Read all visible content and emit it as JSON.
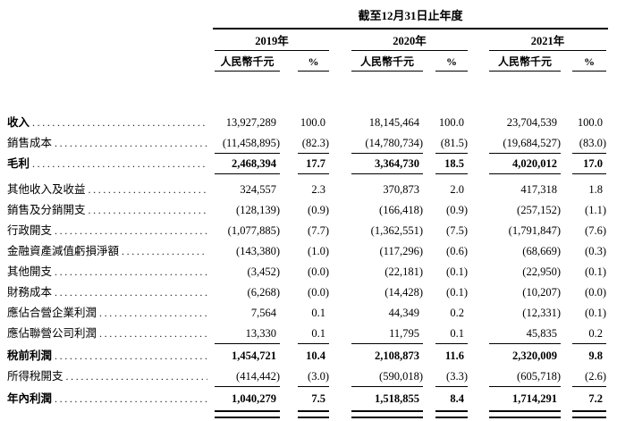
{
  "header": {
    "title": "截至12月31日止年度",
    "years": [
      "2019年",
      "2020年",
      "2021年"
    ],
    "unit_label": "人民幣千元",
    "percent_label": "%"
  },
  "style": {
    "text_color": "#000000",
    "background_color": "#ffffff",
    "rule_color": "#000000"
  },
  "rows": [
    {
      "label": "收入",
      "a1": "13,927,289",
      "p1": "100.0",
      "a2": "18,145,464",
      "p2": "100.0",
      "a3": "23,704,539",
      "p3": "100.0"
    },
    {
      "label": "銷售成本",
      "a1": "(11,458,895)",
      "p1": "(82.3)",
      "a2": "(14,780,734)",
      "p2": "(81.5)",
      "a3": "(19,684,527)",
      "p3": "(83.0)"
    },
    {
      "label": "毛利",
      "a1": "2,468,394",
      "p1": "17.7",
      "a2": "3,364,730",
      "p2": "18.5",
      "a3": "4,020,012",
      "p3": "17.0"
    },
    {
      "label": "其他收入及收益",
      "a1": "324,557",
      "p1": "2.3",
      "a2": "370,873",
      "p2": "2.0",
      "a3": "417,318",
      "p3": "1.8"
    },
    {
      "label": "銷售及分銷開支",
      "a1": "(128,139)",
      "p1": "(0.9)",
      "a2": "(166,418)",
      "p2": "(0.9)",
      "a3": "(257,152)",
      "p3": "(1.1)"
    },
    {
      "label": "行政開支",
      "a1": "(1,077,885)",
      "p1": "(7.7)",
      "a2": "(1,362,551)",
      "p2": "(7.5)",
      "a3": "(1,791,847)",
      "p3": "(7.6)"
    },
    {
      "label": "金融資產減值虧損淨額",
      "a1": "(143,380)",
      "p1": "(1.0)",
      "a2": "(117,296)",
      "p2": "(0.6)",
      "a3": "(68,669)",
      "p3": "(0.3)"
    },
    {
      "label": "其他開支",
      "a1": "(3,452)",
      "p1": "(0.0)",
      "a2": "(22,181)",
      "p2": "(0.1)",
      "a3": "(22,950)",
      "p3": "(0.1)"
    },
    {
      "label": "財務成本",
      "a1": "(6,268)",
      "p1": "(0.0)",
      "a2": "(14,428)",
      "p2": "(0.1)",
      "a3": "(10,207)",
      "p3": "(0.0)"
    },
    {
      "label": "應佔合營企業利潤",
      "a1": "7,564",
      "p1": "0.1",
      "a2": "44,349",
      "p2": "0.2",
      "a3": "(12,331)",
      "p3": "(0.1)"
    },
    {
      "label": "應佔聯營公司利潤",
      "a1": "13,330",
      "p1": "0.1",
      "a2": "11,795",
      "p2": "0.1",
      "a3": "45,835",
      "p3": "0.2"
    },
    {
      "label": "稅前利潤",
      "a1": "1,454,721",
      "p1": "10.4",
      "a2": "2,108,873",
      "p2": "11.6",
      "a3": "2,320,009",
      "p3": "9.8"
    },
    {
      "label": "所得稅開支",
      "a1": "(414,442)",
      "p1": "(3.0)",
      "a2": "(590,018)",
      "p2": "(3.3)",
      "a3": "(605,718)",
      "p3": "(2.6)"
    },
    {
      "label": "年內利潤",
      "a1": "1,040,279",
      "p1": "7.5",
      "a2": "1,518,855",
      "p2": "8.4",
      "a3": "1,714,291",
      "p3": "7.2"
    }
  ]
}
